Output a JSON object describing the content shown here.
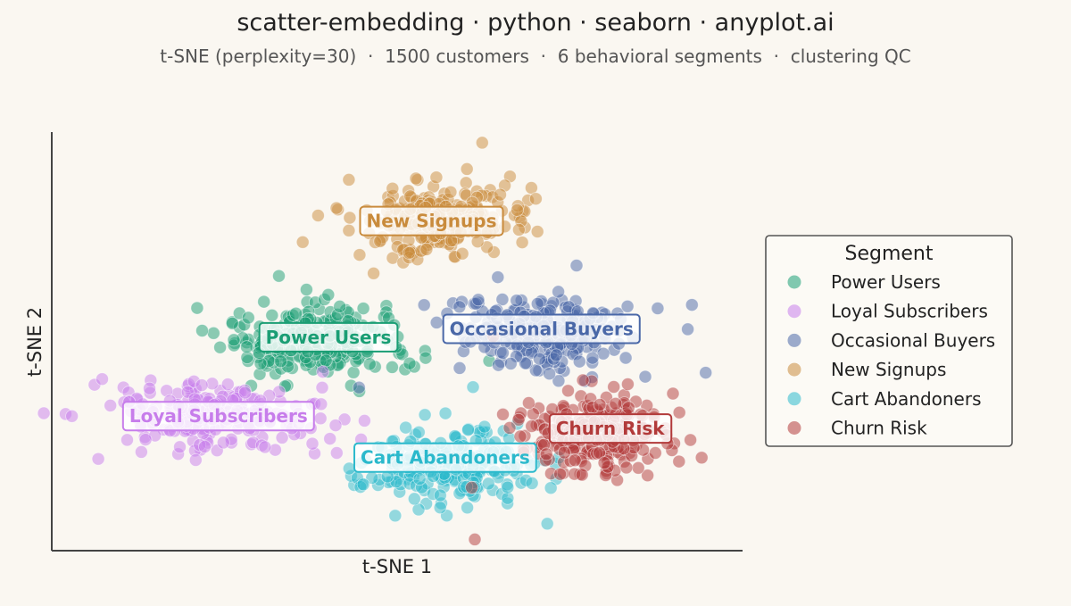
{
  "page": {
    "background": "#FAF7F1"
  },
  "chart_data": {
    "type": "scatter",
    "title": "scatter-embedding · python · seaborn · anyplot.ai",
    "subtitle": "t-SNE (perplexity=30)  ·  1500 customers  ·  6 behavioral segments  ·  clustering QC",
    "xlabel": "t-SNE 1",
    "ylabel": "t-SNE 2",
    "xlim": [
      0,
      100
    ],
    "ylim": [
      0,
      100
    ],
    "grid": false,
    "ticks": false,
    "legend": {
      "title": "Segment",
      "placement": "right"
    },
    "point_opacity": 0.5,
    "series": [
      {
        "name": "Power Users",
        "color": "#1A9E74",
        "center": [
          38,
          50
        ],
        "spread": [
          6.2,
          4.6
        ],
        "count": 250,
        "label_at": [
          40,
          51
        ]
      },
      {
        "name": "Loyal Subscribers",
        "color": "#C77DEB",
        "center": [
          23,
          32
        ],
        "spread": [
          7.0,
          4.0
        ],
        "count": 250,
        "label_at": [
          24,
          32
        ]
      },
      {
        "name": "Occasional Buyers",
        "color": "#4A68A8",
        "center": [
          71,
          52
        ],
        "spread": [
          7.0,
          4.6
        ],
        "count": 250,
        "label_at": [
          71,
          53
        ]
      },
      {
        "name": "New Signups",
        "color": "#C98B3C",
        "center": [
          56,
          79
        ],
        "spread": [
          6.0,
          4.6
        ],
        "count": 250,
        "label_at": [
          55,
          79
        ]
      },
      {
        "name": "Cart Abandoners",
        "color": "#2BB9CC",
        "center": [
          58,
          20
        ],
        "spread": [
          6.0,
          4.6
        ],
        "count": 250,
        "label_at": [
          57,
          22
        ]
      },
      {
        "name": "Churn Risk",
        "color": "#B23A3A",
        "center": [
          79,
          28
        ],
        "spread": [
          5.6,
          4.8
        ],
        "count": 250,
        "label_at": [
          81,
          29
        ]
      }
    ]
  }
}
